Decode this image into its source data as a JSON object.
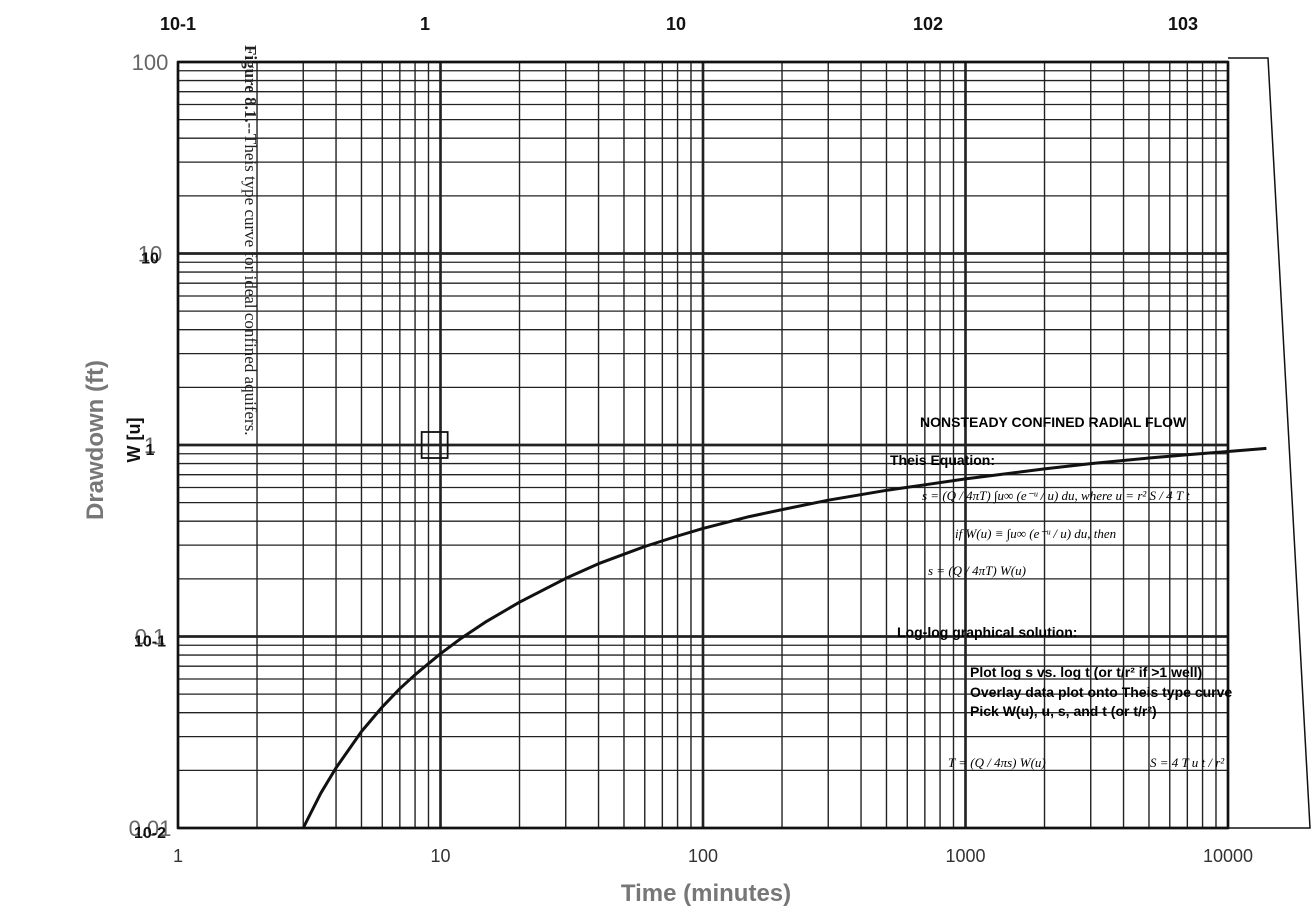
{
  "caption": {
    "figure_label": "Figure 8.1.",
    "text": "--Theis type curve for ideal confined aquifers."
  },
  "chart_data": {
    "type": "line",
    "title": "",
    "xlabel": "Time (minutes)",
    "ylabel": "Drawdown (ft)",
    "inner_ylabel": "W [u]",
    "x_scale": "log",
    "y_scale": "log",
    "xlim": [
      1,
      10000
    ],
    "ylim": [
      0.01,
      100
    ],
    "grid": true,
    "x_ticks": [
      "1",
      "10",
      "100",
      "1000",
      "10000"
    ],
    "y_ticks_outer": [
      "0.01",
      "0.1",
      "1",
      "10",
      "100"
    ],
    "top_ticks": [
      "10-1",
      "1",
      "10",
      "102",
      "103"
    ],
    "inner_y_ticks": [
      "10-2",
      "10-1",
      "1",
      "10"
    ],
    "series": [
      {
        "x": [
          3,
          3.5,
          4,
          5,
          6,
          7,
          8,
          10,
          12,
          15,
          20,
          30,
          40,
          60,
          80,
          100,
          150,
          200,
          300,
          500,
          700,
          1000,
          2000,
          3000,
          5000,
          7000,
          10000,
          14000
        ],
        "y": [
          0.01,
          0.0152,
          0.0206,
          0.0319,
          0.0429,
          0.0534,
          0.0632,
          0.0813,
          0.098,
          0.12,
          0.151,
          0.201,
          0.24,
          0.295,
          0.335,
          0.367,
          0.423,
          0.46,
          0.515,
          0.58,
          0.62,
          0.665,
          0.75,
          0.8,
          0.855,
          0.89,
          0.925,
          0.96
        ]
      }
    ],
    "match_point": {
      "x": 9.5,
      "y": 1
    },
    "panel": {
      "title": "NONSTEADY CONFINED RADIAL FLOW",
      "eq_heading": "Theis Equation:",
      "eq1": "s = (Q / 4πT) ∫u∞ (e⁻ᵘ / u) du,     where u = r² S / 4 T t",
      "eq2": "if  W(u) ≡ ∫u∞ (e⁻ᵘ / u) du,   then",
      "eq3": "s = (Q / 4πT) W(u)",
      "graph_heading": "Log-log graphical solution:",
      "steps": [
        "Plot log s vs. log t (or t/r² if >1 well)",
        "Overlay data plot onto Theis type curve",
        "Pick W(u), u, s, and t (or t/r²)"
      ],
      "result_T": "T = (Q / 4πs) W(u)",
      "result_S": "S = 4 T u t / r²"
    }
  }
}
